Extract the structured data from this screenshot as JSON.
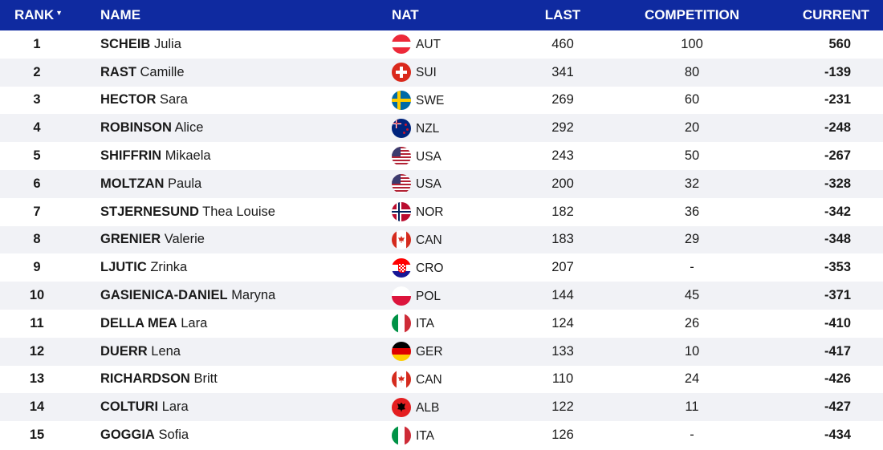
{
  "header": {
    "rank": "RANK",
    "name": "NAME",
    "nat": "NAT",
    "last": "LAST",
    "competition": "COMPETITION",
    "current": "CURRENT"
  },
  "rows": [
    {
      "rank": "1",
      "surname": "SCHEIB",
      "first": "Julia",
      "flag": "aut",
      "nat": "AUT",
      "last": "460",
      "competition": "100",
      "current": "560"
    },
    {
      "rank": "2",
      "surname": "RAST",
      "first": "Camille",
      "flag": "sui",
      "nat": "SUI",
      "last": "341",
      "competition": "80",
      "current": "-139"
    },
    {
      "rank": "3",
      "surname": "HECTOR",
      "first": "Sara",
      "flag": "swe",
      "nat": "SWE",
      "last": "269",
      "competition": "60",
      "current": "-231"
    },
    {
      "rank": "4",
      "surname": "ROBINSON",
      "first": "Alice",
      "flag": "nzl",
      "nat": "NZL",
      "last": "292",
      "competition": "20",
      "current": "-248"
    },
    {
      "rank": "5",
      "surname": "SHIFFRIN",
      "first": "Mikaela",
      "flag": "usa",
      "nat": "USA",
      "last": "243",
      "competition": "50",
      "current": "-267"
    },
    {
      "rank": "6",
      "surname": "MOLTZAN",
      "first": "Paula",
      "flag": "usa",
      "nat": "USA",
      "last": "200",
      "competition": "32",
      "current": "-328"
    },
    {
      "rank": "7",
      "surname": "STJERNESUND",
      "first": "Thea Louise",
      "flag": "nor",
      "nat": "NOR",
      "last": "182",
      "competition": "36",
      "current": "-342"
    },
    {
      "rank": "8",
      "surname": "GRENIER",
      "first": "Valerie",
      "flag": "can",
      "nat": "CAN",
      "last": "183",
      "competition": "29",
      "current": "-348"
    },
    {
      "rank": "9",
      "surname": "LJUTIC",
      "first": "Zrinka",
      "flag": "cro",
      "nat": "CRO",
      "last": "207",
      "competition": "-",
      "current": "-353"
    },
    {
      "rank": "10",
      "surname": "GASIENICA-DANIEL",
      "first": "Maryna",
      "flag": "pol",
      "nat": "POL",
      "last": "144",
      "competition": "45",
      "current": "-371"
    },
    {
      "rank": "11",
      "surname": "DELLA MEA",
      "first": "Lara",
      "flag": "ita",
      "nat": "ITA",
      "last": "124",
      "competition": "26",
      "current": "-410"
    },
    {
      "rank": "12",
      "surname": "DUERR",
      "first": "Lena",
      "flag": "ger",
      "nat": "GER",
      "last": "133",
      "competition": "10",
      "current": "-417"
    },
    {
      "rank": "13",
      "surname": "RICHARDSON",
      "first": "Britt",
      "flag": "can",
      "nat": "CAN",
      "last": "110",
      "competition": "24",
      "current": "-426"
    },
    {
      "rank": "14",
      "surname": "COLTURI",
      "first": "Lara",
      "flag": "alb",
      "nat": "ALB",
      "last": "122",
      "competition": "11",
      "current": "-427"
    },
    {
      "rank": "15",
      "surname": "GOGGIA",
      "first": "Sofia",
      "flag": "ita",
      "nat": "ITA",
      "last": "126",
      "competition": "-",
      "current": "-434"
    }
  ]
}
